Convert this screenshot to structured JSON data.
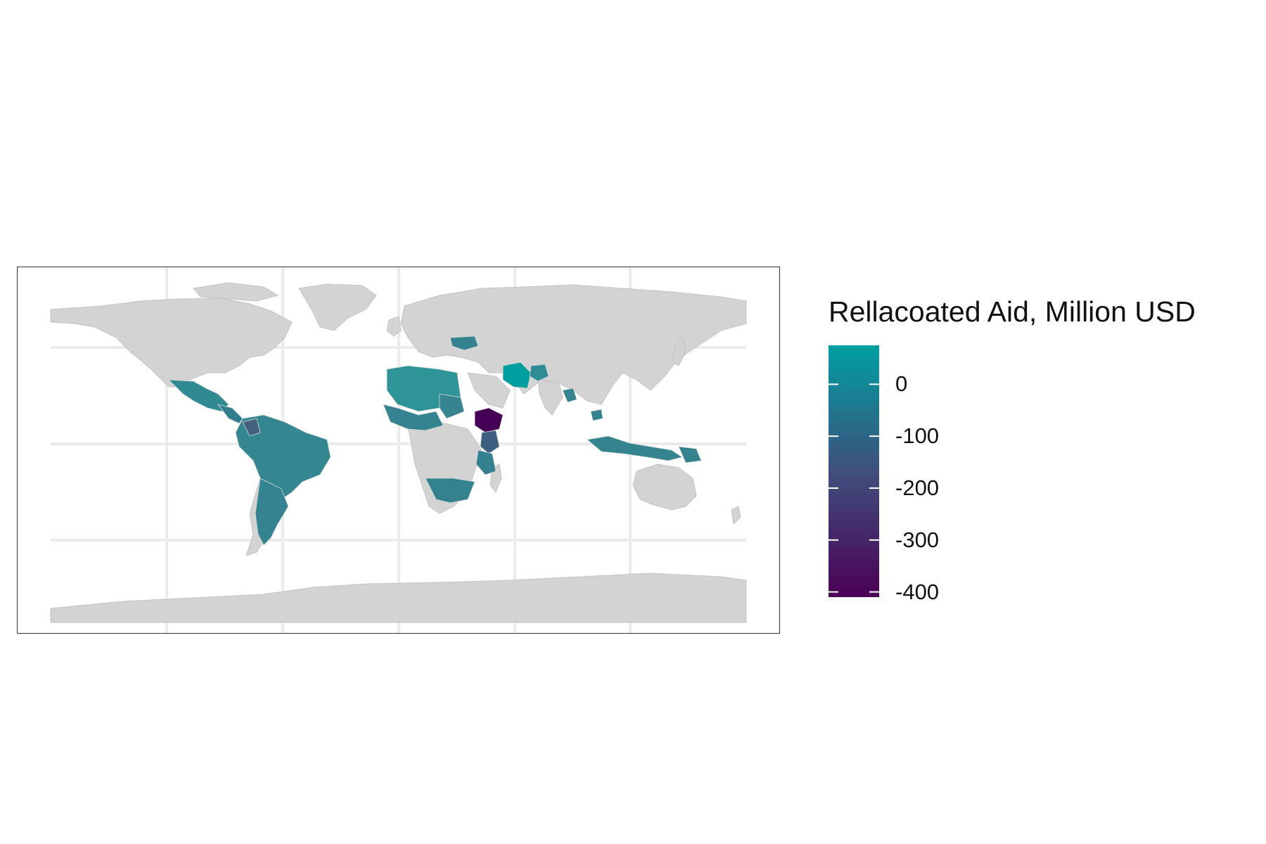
{
  "legend": {
    "title": "Rellacoated Aid, Million USD",
    "breaks": [
      {
        "value": 0,
        "label": "0"
      },
      {
        "value": -100,
        "label": "-100"
      },
      {
        "value": -200,
        "label": "-200"
      },
      {
        "value": -300,
        "label": "-300"
      },
      {
        "value": -400,
        "label": "-400"
      }
    ],
    "range": [
      -410,
      75
    ],
    "low_color": "#4b0055",
    "mid_color": "#3f4f7d",
    "high_color": "#00a0a0"
  },
  "colors": {
    "land": "#d3d3d3",
    "border": "#bdbdbd",
    "grid": "#ebebeb",
    "frame": "#333333"
  }
}
